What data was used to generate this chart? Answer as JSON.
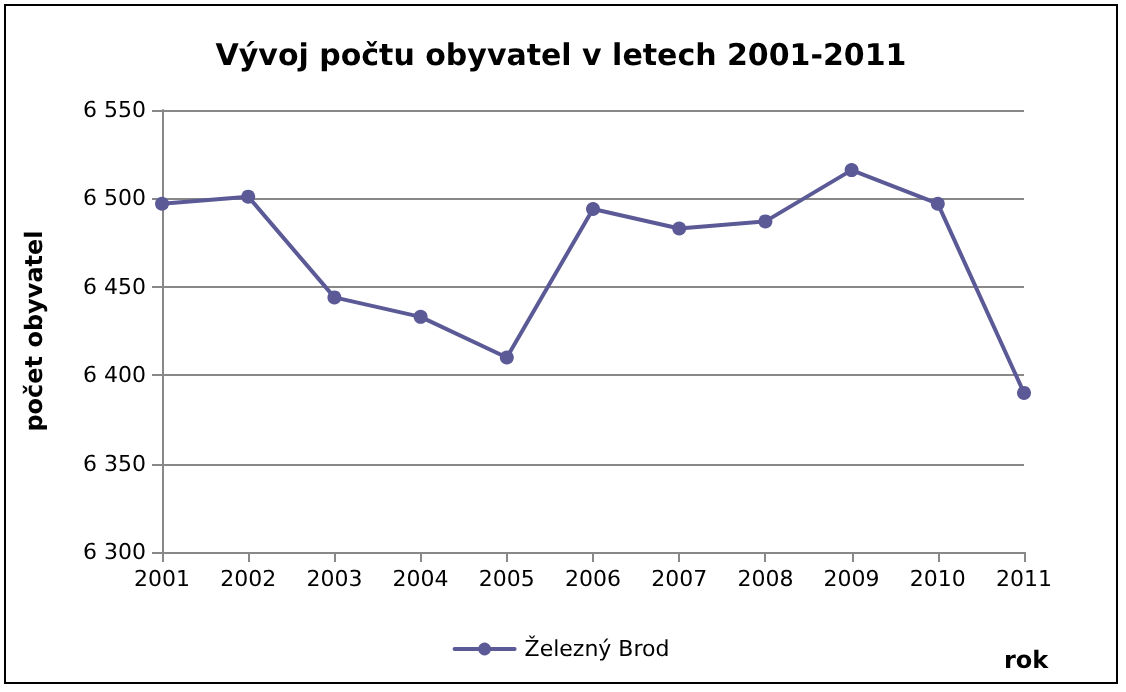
{
  "chart_data": {
    "type": "line",
    "title": "Vývoj počtu obyvatel v letech 2001-2011",
    "xlabel": "rok",
    "ylabel": "počet obyvatel",
    "categories": [
      "2001",
      "2002",
      "2003",
      "2004",
      "2005",
      "2006",
      "2007",
      "2008",
      "2009",
      "2010",
      "2011"
    ],
    "series": [
      {
        "name": "Železný Brod",
        "color": "#5b5a96",
        "values": [
          6497,
          6501,
          6444,
          6433,
          6410,
          6494,
          6483,
          6487,
          6516,
          6497,
          6390
        ]
      }
    ],
    "ylim": [
      6300,
      6550
    ],
    "yticks": [
      {
        "value": 6300,
        "label": "6 300"
      },
      {
        "value": 6350,
        "label": "6 350"
      },
      {
        "value": 6400,
        "label": "6 400"
      },
      {
        "value": 6450,
        "label": "6 450"
      },
      {
        "value": 6500,
        "label": "6 500"
      },
      {
        "value": 6550,
        "label": "6 550"
      }
    ],
    "grid": "y",
    "legend": "bottom",
    "marker": "circle",
    "line_style": "solid"
  }
}
